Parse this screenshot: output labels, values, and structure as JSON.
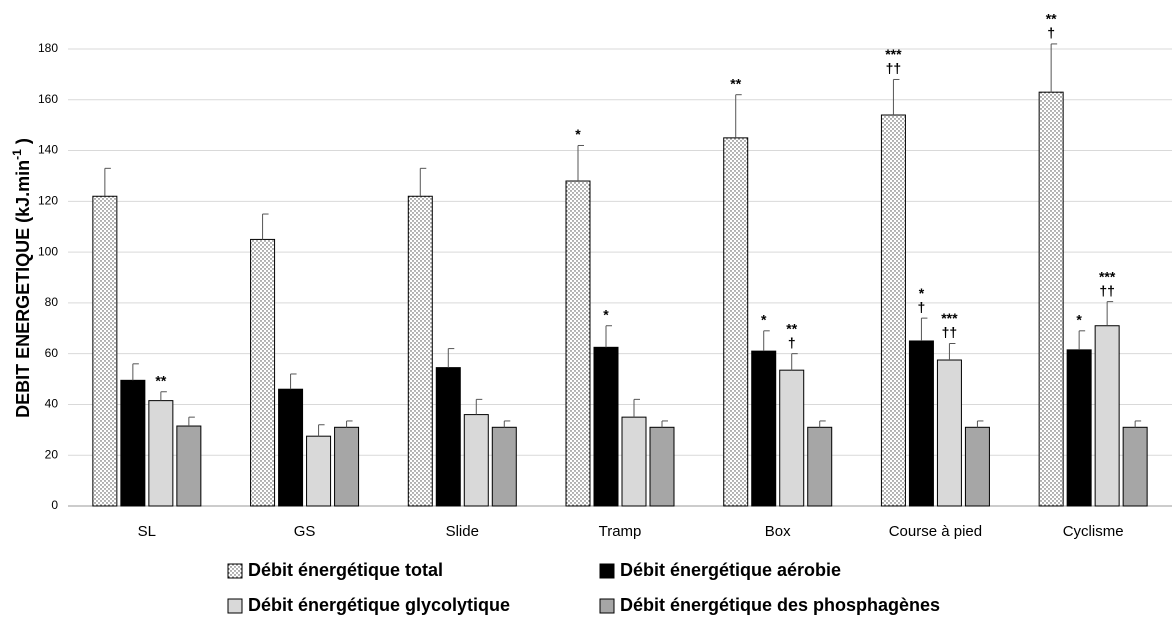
{
  "chart_data": {
    "type": "bar",
    "y_label": "DEBIT ENERGETIQUE (kJ.min",
    "y_label_sup": "-1",
    "y_label_end": " )",
    "categories": [
      "SL",
      "GS",
      "Slide",
      "Tramp",
      "Box",
      "Course à pied",
      "Cyclisme"
    ],
    "ylim": [
      0,
      180
    ],
    "yticks": [
      0,
      20,
      40,
      60,
      80,
      100,
      120,
      140,
      160,
      180
    ],
    "grid": true,
    "series": [
      {
        "name": "Débit énergétique total",
        "color": "#ffffff",
        "pattern": "dots",
        "values": [
          122,
          105,
          122,
          128,
          145,
          154,
          163
        ],
        "errors": [
          11,
          10,
          11,
          14,
          17,
          14,
          19
        ],
        "annotations": [
          null,
          null,
          null,
          [
            "*"
          ],
          [
            "**"
          ],
          [
            "***",
            "††"
          ],
          [
            "**",
            "†"
          ]
        ]
      },
      {
        "name": "Débit énergétique aérobie",
        "color": "#000000",
        "values": [
          49.5,
          46,
          54.5,
          62.5,
          61,
          65,
          61.5
        ],
        "errors": [
          6.5,
          6,
          7.5,
          8.5,
          8,
          9,
          7.5
        ],
        "annotations": [
          null,
          null,
          null,
          [
            "*"
          ],
          [
            "*"
          ],
          [
            "*",
            "†"
          ],
          [
            "*"
          ]
        ]
      },
      {
        "name": "Débit énergétique glycolytique",
        "color": "#d9d9d9",
        "values": [
          41.5,
          27.5,
          36,
          35,
          53.5,
          57.5,
          71
        ],
        "errors": [
          3.5,
          4.5,
          6,
          7,
          6.5,
          6.5,
          9.5
        ],
        "annotations": [
          [
            "**"
          ],
          null,
          null,
          null,
          [
            "**",
            "†"
          ],
          [
            "***",
            "††"
          ],
          [
            "***",
            "††"
          ]
        ]
      },
      {
        "name": "Débit énergétique des phosphagènes",
        "color": "#a6a6a6",
        "values": [
          31.5,
          31,
          31,
          31,
          31,
          31,
          31
        ],
        "errors": [
          3.5,
          2.5,
          2.5,
          2.5,
          2.5,
          2.5,
          2.5
        ],
        "annotations": [
          null,
          null,
          null,
          null,
          null,
          null,
          null
        ]
      }
    ]
  }
}
